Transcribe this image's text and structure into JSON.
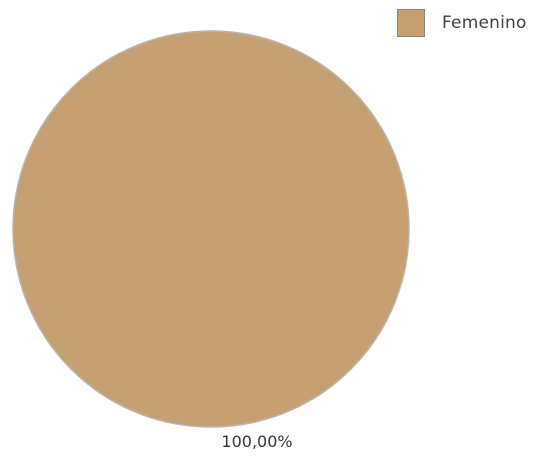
{
  "chart_data": {
    "type": "pie",
    "title": "",
    "slices": [
      {
        "label": "Femenino",
        "value": 100.0,
        "display": "100,00%",
        "color": "#c6a072"
      }
    ],
    "legend": {
      "placement": "top-right"
    }
  }
}
